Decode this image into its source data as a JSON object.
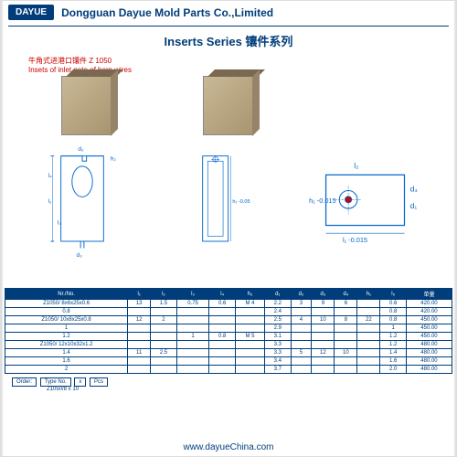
{
  "logo": "DAYUE",
  "company": "Dongguan Dayue Mold Parts Co.,Limited",
  "title": "Inserts Series 镶件系列",
  "subtitle_cn": "牛角式进港口镶件 Z 1050",
  "subtitle_en": "Insets of inlet gate of horn wires",
  "dims": {
    "d2": "d₂",
    "h2": "h₂",
    "l4": "l₄",
    "l1": "l₁",
    "l3": "l₃",
    "d3": "d₃",
    "l2": "l₂",
    "d4": "d₄",
    "d1": "d₁",
    "h1_tol": "h₁ -0.015",
    "l1_tol": "l₁ -0.015",
    "h1_side": "h₁ -0.05"
  },
  "order": {
    "labels": [
      "Order:",
      "Type No.",
      "x",
      "Pcs"
    ],
    "example": "Z1050/8 x 10"
  },
  "footer": "www.dayueChina.com",
  "table": {
    "headers": [
      "Nr./No.",
      "l₁",
      "l₂",
      "l₃",
      "l₄",
      "h₂",
      "d₁",
      "d₂",
      "d₃",
      "d₄",
      "h₁",
      "l₅",
      "单量"
    ],
    "rows": [
      [
        "Z1050/ 8x6x25x0.6",
        "13",
        "1.5",
        "0.75",
        "0.6",
        "M 4",
        "2.2",
        "3",
        "9",
        "6",
        "",
        "0.6",
        "420.00"
      ],
      [
        "0.8",
        "",
        "",
        "",
        "",
        "",
        "2.4",
        "",
        "",
        "",
        "",
        "0.8",
        "420.00"
      ],
      [
        "Z1050/ 10x8x25x0.8",
        "12",
        "2",
        "",
        "",
        "",
        "2.5",
        "4",
        "10",
        "8",
        "22",
        "0.8",
        "450.00"
      ],
      [
        "1",
        "",
        "",
        "",
        "",
        "",
        "2.9",
        "",
        "",
        "",
        "",
        "1",
        "450.00"
      ],
      [
        "1.2",
        "",
        "",
        "1",
        "0.8",
        "M 5",
        "3.1",
        "",
        "",
        "",
        "",
        "1.2",
        "450.00"
      ],
      [
        "Z1050/ 12x10x32x1.2",
        "",
        "",
        "",
        "",
        "",
        "3.3",
        "",
        "",
        "",
        "",
        "1.2",
        "480.00"
      ],
      [
        "1.4",
        "11",
        "2.5",
        "",
        "",
        "",
        "3.3",
        "5",
        "12",
        "10",
        "",
        "1.4",
        "480.00"
      ],
      [
        "1.6",
        "",
        "",
        "",
        "",
        "",
        "3.4",
        "",
        "",
        "",
        "",
        "1.6",
        "480.00"
      ],
      [
        "2",
        "",
        "",
        "",
        "",
        "",
        "3.7",
        "",
        "",
        "",
        "",
        "2.0",
        "480.00"
      ]
    ]
  },
  "colors": {
    "brand": "#003d7a",
    "accent": "#c00",
    "line": "#0066cc"
  }
}
